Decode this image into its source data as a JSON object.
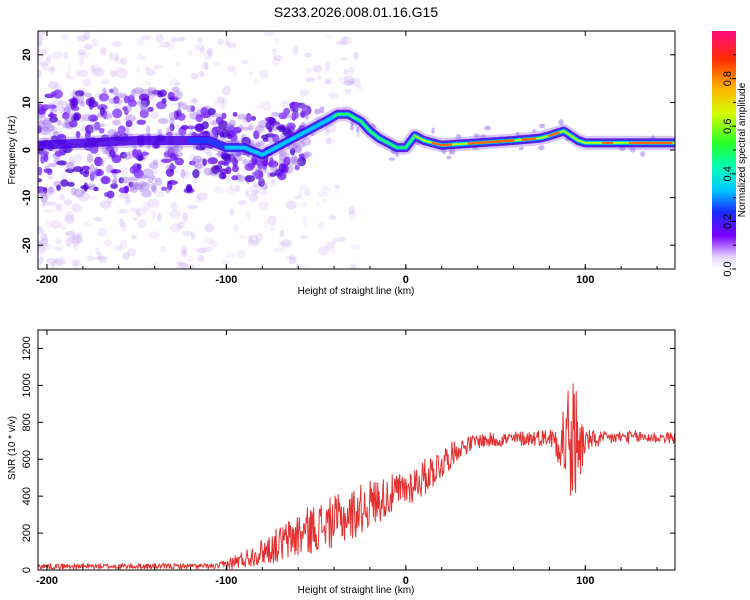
{
  "title": "S233.2026.008.01.16.G15",
  "chart_data": [
    {
      "type": "heatmap",
      "name": "spectrogram",
      "xlabel": "Height of straight line (km)",
      "ylabel": "Frequency (Hz)",
      "xlim": [
        -205,
        150
      ],
      "ylim": [
        -25,
        25
      ],
      "xticks": [
        -200,
        -100,
        0,
        100
      ],
      "yticks": [
        -20,
        -10,
        0,
        10,
        20
      ],
      "colorbar": {
        "label": "Normalized spectral amplitude",
        "range": [
          0.0,
          1.0
        ],
        "ticks": [
          0.0,
          0.2,
          0.4,
          0.6,
          0.8
        ]
      },
      "ridge": {
        "height_km": [
          -205,
          -150,
          -110,
          -100,
          -90,
          -80,
          -75,
          -65,
          -55,
          -45,
          -38,
          -32,
          -25,
          -20,
          -15,
          -10,
          -5,
          0,
          5,
          10,
          20,
          40,
          60,
          75,
          80,
          88,
          92,
          96,
          100,
          110,
          120,
          150
        ],
        "frequency_hz": [
          1,
          2,
          2,
          0.5,
          0.5,
          -1,
          0,
          2,
          4,
          6,
          7.5,
          7.5,
          6,
          4,
          2.5,
          1.5,
          0.5,
          0.5,
          3,
          2,
          1,
          1.5,
          2,
          2.5,
          3,
          4,
          3,
          2,
          1.5,
          1.5,
          1.5,
          1.5
        ]
      }
    },
    {
      "type": "line",
      "name": "snr",
      "xlabel": "Height of straight line (km)",
      "ylabel": "SNR (10 * v/v)",
      "xlim": [
        -205,
        150
      ],
      "ylim": [
        0,
        1300
      ],
      "xticks": [
        -200,
        -100,
        0,
        100
      ],
      "yticks": [
        0,
        200,
        400,
        600,
        800,
        1000,
        1200
      ],
      "color": "#e53030",
      "envelope": {
        "height_km": [
          -205,
          -105,
          -100,
          -90,
          -80,
          -70,
          -60,
          -50,
          -40,
          -30,
          -20,
          -10,
          0,
          10,
          20,
          30,
          40,
          60,
          80,
          85,
          90,
          95,
          100,
          110,
          120,
          130,
          150
        ],
        "snr_mean": [
          20,
          20,
          30,
          60,
          100,
          140,
          190,
          230,
          260,
          300,
          360,
          400,
          440,
          500,
          580,
          660,
          700,
          710,
          720,
          700,
          700,
          680,
          700,
          710,
          720,
          720,
          715
        ],
        "snr_spread": [
          15,
          15,
          30,
          50,
          70,
          100,
          130,
          130,
          140,
          140,
          130,
          110,
          100,
          100,
          90,
          50,
          40,
          40,
          45,
          120,
          350,
          350,
          60,
          40,
          35,
          35,
          30
        ]
      }
    }
  ]
}
